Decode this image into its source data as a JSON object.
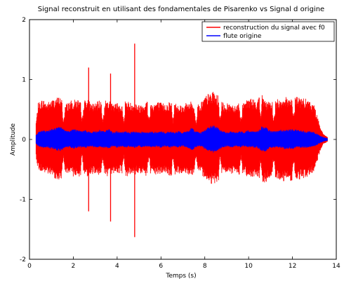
{
  "chart_data": {
    "type": "line",
    "title": "Signal reconstruit en utilisant des fondamentales de Pisarenko vs Signal d origine",
    "xlabel": "Temps (s)",
    "ylabel": "Amplitude",
    "xlim": [
      0,
      14
    ],
    "ylim": [
      -2,
      2
    ],
    "xticks": [
      "0",
      "2",
      "4",
      "6",
      "8",
      "10",
      "12",
      "14"
    ],
    "yticks": [
      "-2",
      "-1",
      "0",
      "1",
      "2"
    ],
    "grid": false,
    "legend_position": "top-right",
    "series": [
      {
        "name": "reconstruction du signal avec f0",
        "color": "#ff0000",
        "envelope": {
          "t": [
            0.3,
            0.4,
            0.6,
            0.8,
            1.0,
            1.2,
            1.4,
            1.6,
            1.8,
            2.0,
            2.2,
            2.4,
            2.6,
            2.8,
            3.0,
            3.2,
            3.4,
            3.6,
            3.8,
            4.0,
            4.2,
            4.4,
            4.6,
            4.8,
            5.0,
            5.2,
            5.4,
            5.6,
            5.8,
            6.0,
            6.2,
            6.4,
            6.6,
            6.8,
            7.0,
            7.2,
            7.4,
            7.6,
            7.8,
            8.0,
            8.2,
            8.4,
            8.6,
            8.8,
            9.0,
            9.2,
            9.4,
            9.6,
            9.8,
            10.0,
            10.2,
            10.4,
            10.6,
            10.8,
            11.0,
            11.2,
            11.4,
            11.6,
            11.8,
            12.0,
            12.2,
            12.4,
            12.6,
            12.8,
            13.0,
            13.2,
            13.4,
            13.6
          ],
          "upper": [
            0.3,
            0.62,
            0.68,
            0.62,
            0.66,
            0.7,
            0.72,
            0.58,
            0.64,
            0.66,
            0.68,
            0.6,
            0.7,
            0.62,
            0.6,
            0.66,
            0.64,
            0.68,
            0.58,
            0.62,
            0.6,
            0.66,
            0.62,
            0.64,
            0.58,
            0.62,
            0.66,
            0.6,
            0.64,
            0.62,
            0.6,
            0.64,
            0.62,
            0.6,
            0.58,
            0.62,
            0.64,
            0.56,
            0.62,
            0.72,
            0.78,
            0.8,
            0.74,
            0.62,
            0.6,
            0.62,
            0.58,
            0.64,
            0.6,
            0.7,
            0.68,
            0.66,
            0.8,
            0.64,
            0.62,
            0.66,
            0.68,
            0.72,
            0.7,
            0.74,
            0.72,
            0.7,
            0.68,
            0.64,
            0.58,
            0.3,
            0.1,
            0.04
          ],
          "lower": [
            -0.3,
            -0.52,
            -0.56,
            -0.58,
            -0.62,
            -0.66,
            -0.7,
            -0.56,
            -0.6,
            -0.62,
            -0.64,
            -0.58,
            -0.62,
            -0.6,
            -0.56,
            -0.6,
            -0.62,
            -0.64,
            -0.56,
            -0.58,
            -0.56,
            -0.62,
            -0.6,
            -0.6,
            -0.56,
            -0.6,
            -0.62,
            -0.58,
            -0.6,
            -0.58,
            -0.56,
            -0.62,
            -0.6,
            -0.58,
            -0.56,
            -0.58,
            -0.6,
            -0.54,
            -0.58,
            -0.64,
            -0.72,
            -0.76,
            -0.7,
            -0.58,
            -0.56,
            -0.58,
            -0.56,
            -0.6,
            -0.58,
            -0.64,
            -0.62,
            -0.62,
            -0.78,
            -0.72,
            -0.62,
            -0.66,
            -0.68,
            -0.7,
            -0.68,
            -0.7,
            -0.68,
            -0.66,
            -0.64,
            -0.6,
            -0.54,
            -0.28,
            -0.08,
            -0.04
          ]
        },
        "gaps_s": [
          1.55,
          2.4,
          3.35,
          4.3,
          5.45,
          6.55,
          7.6,
          8.7,
          9.65,
          10.55,
          11.15,
          12.05
        ],
        "spikes": [
          {
            "t": 2.7,
            "y": 1.2
          },
          {
            "t": 2.7,
            "y": -1.2
          },
          {
            "t": 3.7,
            "y": 1.1
          },
          {
            "t": 3.7,
            "y": -1.37
          },
          {
            "t": 4.8,
            "y": 1.6
          },
          {
            "t": 4.8,
            "y": -1.63
          }
        ]
      },
      {
        "name": "flute origine",
        "color": "#0000ff",
        "envelope": {
          "t": [
            0.3,
            0.4,
            0.6,
            0.8,
            1.0,
            1.2,
            1.4,
            1.6,
            1.8,
            2.0,
            2.2,
            2.4,
            2.6,
            2.8,
            3.0,
            3.2,
            3.4,
            3.6,
            3.8,
            4.0,
            4.2,
            4.4,
            4.6,
            4.8,
            5.0,
            5.2,
            5.4,
            5.6,
            5.8,
            6.0,
            6.2,
            6.4,
            6.6,
            6.8,
            7.0,
            7.2,
            7.4,
            7.6,
            7.8,
            8.0,
            8.2,
            8.4,
            8.6,
            8.8,
            9.0,
            9.2,
            9.4,
            9.6,
            9.8,
            10.0,
            10.2,
            10.4,
            10.6,
            10.8,
            11.0,
            11.2,
            11.4,
            11.6,
            11.8,
            12.0,
            12.2,
            12.4,
            12.6,
            12.8,
            13.0,
            13.2,
            13.4,
            13.6
          ],
          "upper": [
            0.08,
            0.12,
            0.16,
            0.14,
            0.18,
            0.2,
            0.22,
            0.16,
            0.14,
            0.18,
            0.16,
            0.14,
            0.16,
            0.12,
            0.14,
            0.16,
            0.14,
            0.18,
            0.12,
            0.14,
            0.12,
            0.14,
            0.12,
            0.14,
            0.12,
            0.14,
            0.12,
            0.14,
            0.12,
            0.14,
            0.12,
            0.14,
            0.12,
            0.14,
            0.12,
            0.14,
            0.2,
            0.14,
            0.12,
            0.16,
            0.22,
            0.24,
            0.2,
            0.14,
            0.12,
            0.14,
            0.12,
            0.14,
            0.12,
            0.16,
            0.14,
            0.14,
            0.22,
            0.2,
            0.14,
            0.14,
            0.16,
            0.16,
            0.16,
            0.18,
            0.16,
            0.16,
            0.14,
            0.14,
            0.12,
            0.08,
            0.04,
            0.02
          ],
          "lower": [
            -0.08,
            -0.12,
            -0.14,
            -0.14,
            -0.16,
            -0.18,
            -0.2,
            -0.14,
            -0.14,
            -0.16,
            -0.14,
            -0.14,
            -0.14,
            -0.12,
            -0.14,
            -0.14,
            -0.14,
            -0.16,
            -0.12,
            -0.14,
            -0.12,
            -0.14,
            -0.12,
            -0.14,
            -0.12,
            -0.14,
            -0.12,
            -0.14,
            -0.12,
            -0.14,
            -0.12,
            -0.14,
            -0.12,
            -0.14,
            -0.12,
            -0.14,
            -0.18,
            -0.14,
            -0.12,
            -0.16,
            -0.2,
            -0.22,
            -0.18,
            -0.14,
            -0.12,
            -0.14,
            -0.12,
            -0.14,
            -0.12,
            -0.14,
            -0.14,
            -0.14,
            -0.2,
            -0.2,
            -0.14,
            -0.14,
            -0.14,
            -0.16,
            -0.16,
            -0.16,
            -0.14,
            -0.14,
            -0.14,
            -0.14,
            -0.12,
            -0.08,
            -0.04,
            -0.02
          ]
        }
      }
    ]
  },
  "colors": {
    "axis": "#000000",
    "background": "#ffffff"
  }
}
